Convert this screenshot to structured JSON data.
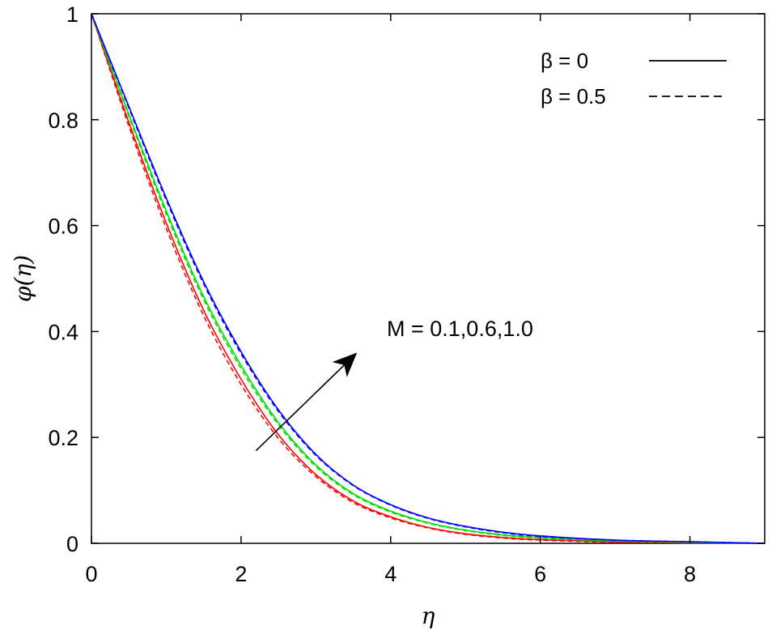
{
  "chart_data": {
    "type": "line",
    "xlabel": "η",
    "ylabel": "φ(η)",
    "xlim": [
      0,
      9
    ],
    "ylim": [
      0,
      1
    ],
    "x_ticks": [
      0,
      2,
      4,
      6,
      8
    ],
    "x_tick_labels": [
      "0",
      "2",
      "4",
      "6",
      "8"
    ],
    "y_ticks": [
      0,
      0.2,
      0.4,
      0.6,
      0.8,
      1
    ],
    "y_tick_labels": [
      "0",
      "0.2",
      "0.4",
      "0.6",
      "0.8",
      "1"
    ],
    "grid": false,
    "legend": {
      "placement": "top-right",
      "entries": [
        {
          "label": "β = 0",
          "style": "solid"
        },
        {
          "label": "β = 0.5",
          "style": "dashed"
        }
      ]
    },
    "annotation": {
      "text": "M = 0.1,0.6,1.0",
      "arrow": true,
      "arrow_from": [
        2.2,
        0.175
      ],
      "arrow_to": [
        3.55,
        0.36
      ]
    },
    "x": [
      0,
      0.5,
      1,
      1.5,
      2,
      2.5,
      3,
      3.5,
      4,
      4.5,
      5,
      5.5,
      6,
      7,
      8,
      9
    ],
    "series": [
      {
        "M": "0.1",
        "beta": "0",
        "style": "solid",
        "color": "#ff0000",
        "values": [
          1.0,
          0.795,
          0.605,
          0.44,
          0.31,
          0.205,
          0.13,
          0.08,
          0.05,
          0.03,
          0.018,
          0.011,
          0.007,
          0.003,
          0.001,
          0.0
        ]
      },
      {
        "M": "0.1",
        "beta": "0.5",
        "style": "dashed",
        "color": "#ff0000",
        "values": [
          1.0,
          0.788,
          0.595,
          0.43,
          0.3,
          0.198,
          0.126,
          0.077,
          0.048,
          0.029,
          0.017,
          0.01,
          0.006,
          0.002,
          0.001,
          0.0
        ]
      },
      {
        "M": "0.6",
        "beta": "0",
        "style": "solid",
        "color": "#00dd00",
        "values": [
          1.0,
          0.81,
          0.628,
          0.466,
          0.336,
          0.228,
          0.148,
          0.094,
          0.061,
          0.039,
          0.025,
          0.016,
          0.011,
          0.005,
          0.002,
          0.0
        ]
      },
      {
        "M": "0.6",
        "beta": "0.5",
        "style": "dashed",
        "color": "#00dd00",
        "values": [
          1.0,
          0.806,
          0.622,
          0.46,
          0.33,
          0.224,
          0.145,
          0.092,
          0.059,
          0.038,
          0.024,
          0.015,
          0.01,
          0.004,
          0.002,
          0.0
        ]
      },
      {
        "M": "1.0",
        "beta": "0",
        "style": "solid",
        "color": "#0000ff",
        "values": [
          1.0,
          0.825,
          0.652,
          0.494,
          0.362,
          0.252,
          0.168,
          0.11,
          0.073,
          0.048,
          0.032,
          0.021,
          0.014,
          0.006,
          0.003,
          0.0
        ]
      },
      {
        "M": "1.0",
        "beta": "0.5",
        "style": "dashed",
        "color": "#0000ff",
        "values": [
          1.0,
          0.822,
          0.648,
          0.49,
          0.358,
          0.249,
          0.166,
          0.109,
          0.072,
          0.047,
          0.031,
          0.02,
          0.013,
          0.006,
          0.003,
          0.0
        ]
      }
    ]
  }
}
